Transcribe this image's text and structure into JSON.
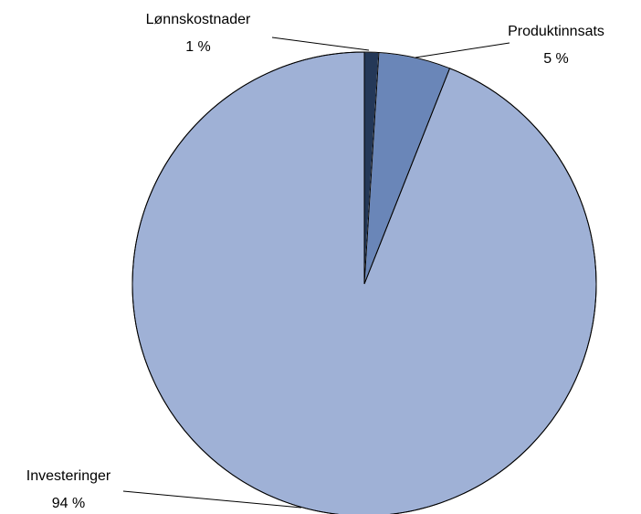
{
  "chart_data": {
    "type": "pie",
    "categories": [
      "Lønnskostnader",
      "Produktinnsats",
      "Investeringer"
    ],
    "values": [
      1,
      5,
      94
    ],
    "value_labels": [
      "1 %",
      "5 %",
      "94 %"
    ],
    "colors": [
      "#243858",
      "#6a86b8",
      "#9fb1d6"
    ]
  }
}
